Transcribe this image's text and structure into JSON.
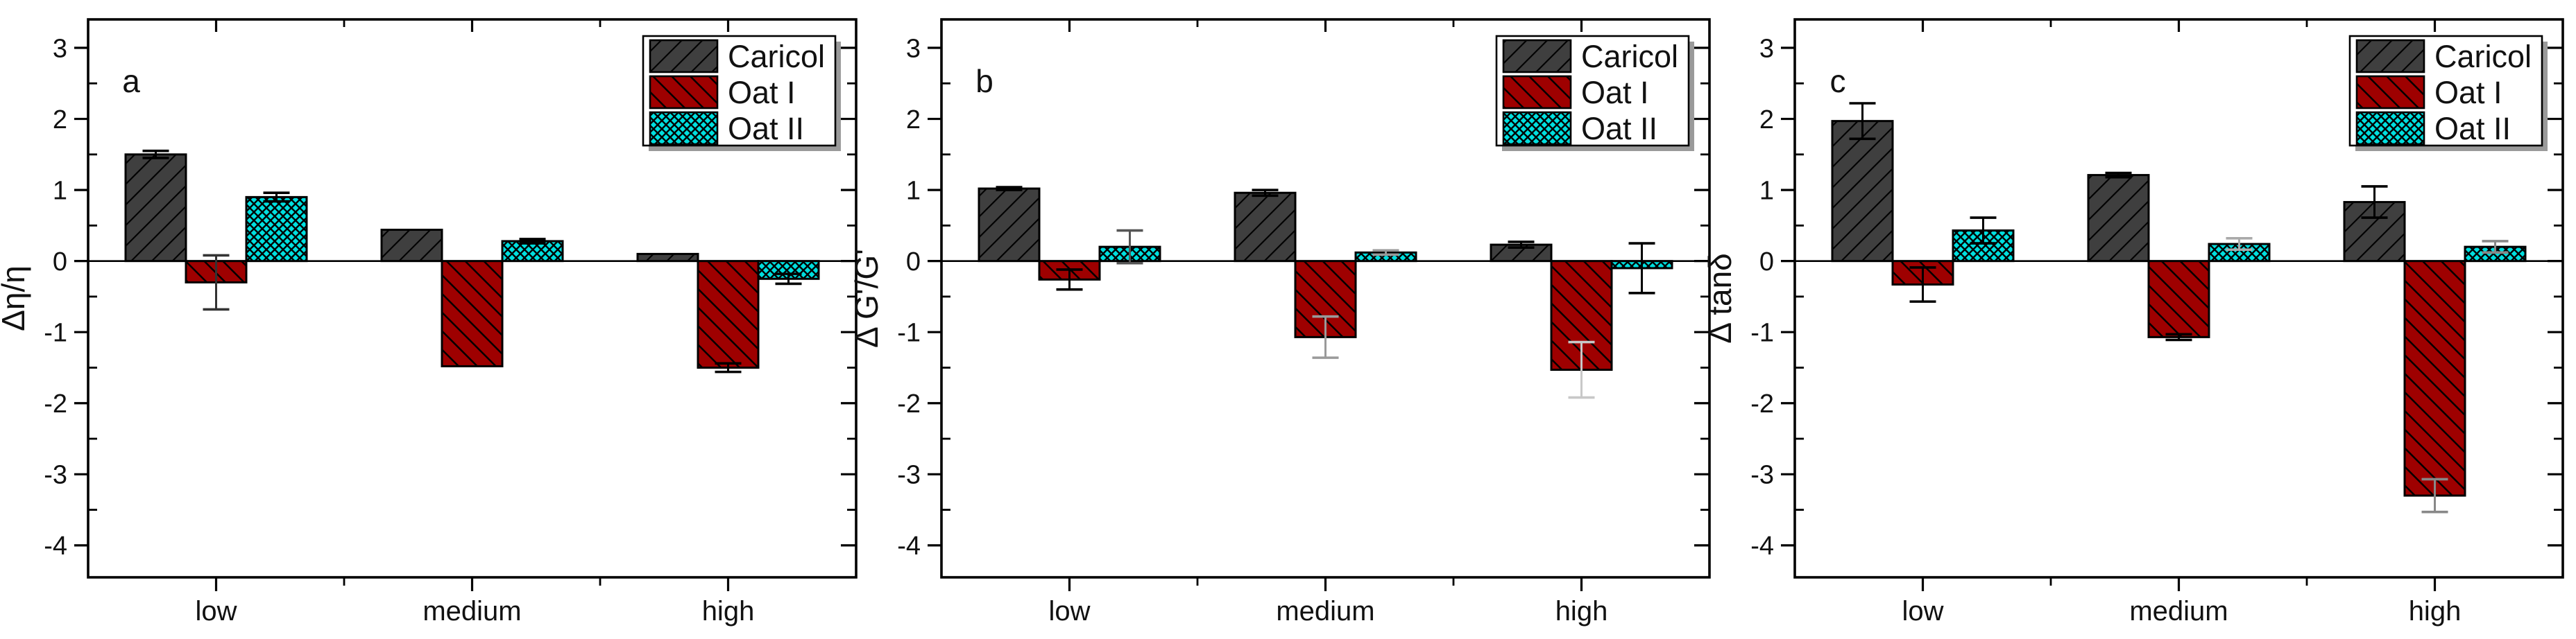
{
  "figure": {
    "background": "#ffffff",
    "axis_color": "#000000",
    "tick_label_color": "#111111",
    "series_names": [
      "Caricol",
      "Oat I",
      "Oat II"
    ],
    "series_styles": {
      "Caricol": {
        "fill": "#3f3f3f",
        "hatch": "forward",
        "hatch_color": "#000000"
      },
      "Oat I": {
        "fill": "#9e0000",
        "hatch": "back",
        "hatch_color": "#000000"
      },
      "Oat II": {
        "fill": "#00dfdf",
        "hatch": "cross",
        "hatch_color": "#000000"
      }
    }
  },
  "chart_data": [
    {
      "type": "bar",
      "panel_label": "a",
      "ylabel": "Δη/η",
      "xlabel": "",
      "categories": [
        "low",
        "medium",
        "high"
      ],
      "ylim": [
        -4.45,
        3.4
      ],
      "y_major_ticks": [
        3,
        2,
        1,
        0,
        -1,
        -2,
        -3,
        -4
      ],
      "y_minor_ticks": [
        2.5,
        1.5,
        0.5,
        -0.5,
        -1.5,
        -2.5,
        -3.5
      ],
      "grid": false,
      "legend_position": "top-right",
      "legend": [
        "Caricol",
        "Oat I",
        "Oat II"
      ],
      "series": [
        {
          "name": "Caricol",
          "values": [
            1.5,
            0.44,
            0.1
          ],
          "errors": [
            0.05,
            0,
            0
          ],
          "error_colors": [
            "#000000",
            "#000000",
            "#000000"
          ]
        },
        {
          "name": "Oat I",
          "values": [
            -0.3,
            -1.48,
            -1.5
          ],
          "errors": [
            0.38,
            0,
            0.06
          ],
          "error_colors": [
            "#333333",
            "#000000",
            "#000000"
          ]
        },
        {
          "name": "Oat II",
          "values": [
            0.9,
            0.28,
            -0.25
          ],
          "errors": [
            0.06,
            0.03,
            0.07
          ],
          "error_colors": [
            "#000000",
            "#000000",
            "#000000"
          ]
        }
      ]
    },
    {
      "type": "bar",
      "panel_label": "b",
      "ylabel": "Δ G'/G'",
      "xlabel": "",
      "categories": [
        "low",
        "medium",
        "high"
      ],
      "ylim": [
        -4.45,
        3.4
      ],
      "y_major_ticks": [
        3,
        2,
        1,
        0,
        -1,
        -2,
        -3,
        -4
      ],
      "y_minor_ticks": [
        2.5,
        1.5,
        0.5,
        -0.5,
        -1.5,
        -2.5,
        -3.5
      ],
      "grid": false,
      "legend_position": "top-right",
      "legend": [
        "Caricol",
        "Oat I",
        "Oat II"
      ],
      "series": [
        {
          "name": "Caricol",
          "values": [
            1.02,
            0.96,
            0.23
          ],
          "errors": [
            0.02,
            0.04,
            0.04
          ],
          "error_colors": [
            "#000000",
            "#000000",
            "#000000"
          ]
        },
        {
          "name": "Oat I",
          "values": [
            -0.26,
            -1.07,
            -1.53
          ],
          "errors": [
            0.14,
            0.29,
            0.39
          ],
          "error_colors": [
            "#000000",
            "#9a9a9a",
            "#c8c8c8"
          ]
        },
        {
          "name": "Oat II",
          "values": [
            0.2,
            0.12,
            -0.1
          ],
          "errors": [
            0.23,
            0.03,
            0.35
          ],
          "error_colors": [
            "#555555",
            "#999999",
            "#000000"
          ]
        }
      ]
    },
    {
      "type": "bar",
      "panel_label": "c",
      "ylabel": "Δ tanδ",
      "xlabel": "",
      "categories": [
        "low",
        "medium",
        "high"
      ],
      "ylim": [
        -4.45,
        3.4
      ],
      "y_major_ticks": [
        3,
        2,
        1,
        0,
        -1,
        -2,
        -3,
        -4
      ],
      "y_minor_ticks": [
        2.5,
        1.5,
        0.5,
        -0.5,
        -1.5,
        -2.5,
        -3.5
      ],
      "grid": false,
      "legend_position": "top-right",
      "legend": [
        "Caricol",
        "Oat I",
        "Oat II"
      ],
      "series": [
        {
          "name": "Caricol",
          "values": [
            1.97,
            1.21,
            0.83
          ],
          "errors": [
            0.25,
            0.03,
            0.22
          ],
          "error_colors": [
            "#000000",
            "#000000",
            "#000000"
          ]
        },
        {
          "name": "Oat I",
          "values": [
            -0.33,
            -1.07,
            -3.3
          ],
          "errors": [
            0.24,
            0.04,
            0.23
          ],
          "error_colors": [
            "#000000",
            "#000000",
            "#888888"
          ]
        },
        {
          "name": "Oat II",
          "values": [
            0.43,
            0.24,
            0.2
          ],
          "errors": [
            0.18,
            0.08,
            0.08
          ],
          "error_colors": [
            "#000000",
            "#aaaaaa",
            "#888888"
          ]
        }
      ]
    }
  ]
}
